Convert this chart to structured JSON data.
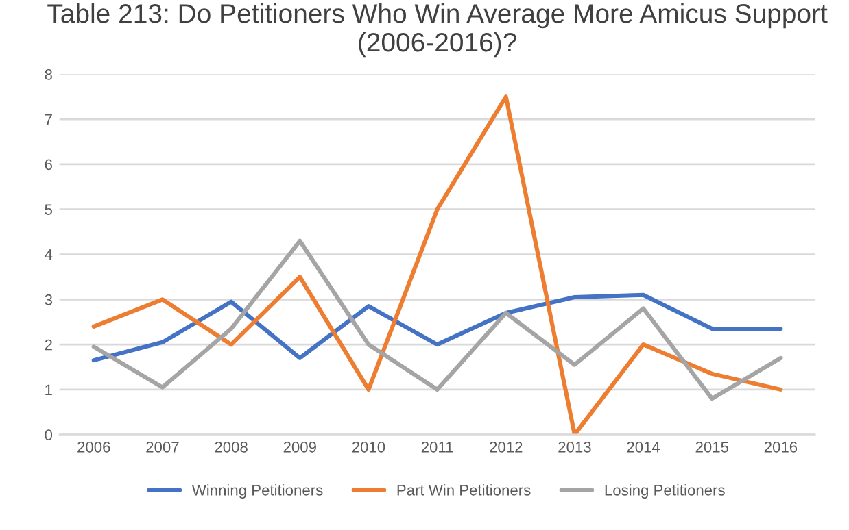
{
  "chart_data": {
    "type": "line",
    "title": "Table 213: Do Petitioners Who Win Average More Amicus Support (2006-2016)?",
    "categories": [
      "2006",
      "2007",
      "2008",
      "2009",
      "2010",
      "2011",
      "2012",
      "2013",
      "2014",
      "2015",
      "2016"
    ],
    "series": [
      {
        "name": "Winning Petitioners",
        "color": "#4472c4",
        "values": [
          1.65,
          2.05,
          2.95,
          1.7,
          2.85,
          2.0,
          2.7,
          3.05,
          3.1,
          2.35,
          2.35
        ]
      },
      {
        "name": "Part Win Petitioners",
        "color": "#ed7d31",
        "values": [
          2.4,
          3.0,
          2.0,
          3.5,
          1.0,
          5.0,
          7.5,
          0,
          2.0,
          1.35,
          1.0
        ]
      },
      {
        "name": "Losing Petitioners",
        "color": "#a5a5a5",
        "values": [
          1.95,
          1.05,
          2.35,
          4.3,
          2.0,
          1.0,
          2.7,
          1.55,
          2.8,
          0.8,
          1.7
        ]
      }
    ],
    "ylim": [
      0,
      8
    ],
    "yticks": [
      0,
      1,
      2,
      3,
      4,
      5,
      6,
      7,
      8
    ],
    "grid": "y",
    "legend": "bottom",
    "marker": "none",
    "line_style": "solid"
  }
}
